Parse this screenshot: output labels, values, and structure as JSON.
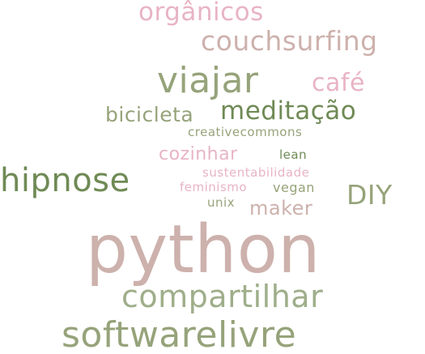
{
  "palette": {
    "pink": "#e8b4c4",
    "mauve": "#cdb1ac",
    "olive": "#96a37a",
    "green": "#6f8a55",
    "sage": "#9fae8a"
  },
  "words": [
    {
      "id": "organicos",
      "text": "orgânicos",
      "color": "#e8b4c4"
    },
    {
      "id": "couchsurfing",
      "text": "couchsurfing",
      "color": "#cdb1ac"
    },
    {
      "id": "viajar",
      "text": "viajar",
      "color": "#96a37a"
    },
    {
      "id": "cafe",
      "text": "café",
      "color": "#e8b4c4"
    },
    {
      "id": "bicicleta",
      "text": "bicicleta",
      "color": "#96a37a"
    },
    {
      "id": "meditacao",
      "text": "meditação",
      "color": "#6f8a55"
    },
    {
      "id": "creativecommons",
      "text": "creativecommons",
      "color": "#96a37a"
    },
    {
      "id": "cozinhar",
      "text": "cozinhar",
      "color": "#e8b4c4"
    },
    {
      "id": "lean",
      "text": "lean",
      "color": "#6f8a55"
    },
    {
      "id": "sustentabilidade",
      "text": "sustentabilidade",
      "color": "#e8b4c4"
    },
    {
      "id": "hipnose",
      "text": "hipnose",
      "color": "#6f8a55"
    },
    {
      "id": "feminismo",
      "text": "feminismo",
      "color": "#e8b4c4"
    },
    {
      "id": "vegan",
      "text": "vegan",
      "color": "#96a37a"
    },
    {
      "id": "diy",
      "text": "DIY",
      "color": "#96a37a"
    },
    {
      "id": "unix",
      "text": "unix",
      "color": "#96a37a"
    },
    {
      "id": "maker",
      "text": "maker",
      "color": "#cdb1ac"
    },
    {
      "id": "python",
      "text": "python",
      "color": "#cdb1ac"
    },
    {
      "id": "compartilhar",
      "text": "compartilhar",
      "color": "#9fae8a"
    },
    {
      "id": "softwarelivre",
      "text": "softwarelivre",
      "color": "#96a37a"
    }
  ]
}
